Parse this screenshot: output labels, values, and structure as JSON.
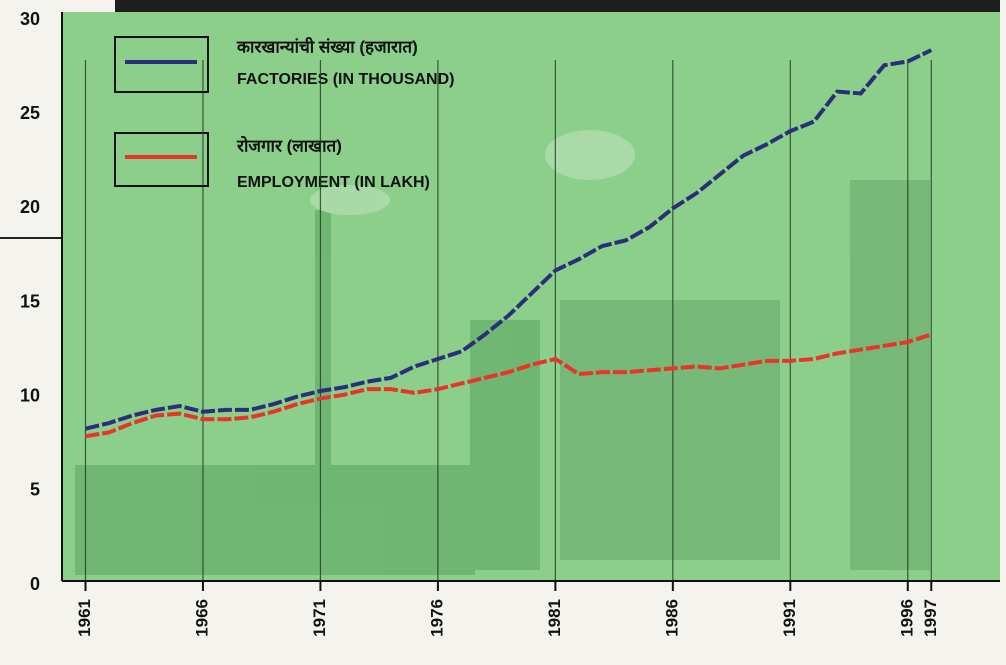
{
  "chart_data": {
    "type": "line",
    "x": [
      1961,
      1962,
      1963,
      1964,
      1965,
      1966,
      1967,
      1968,
      1969,
      1970,
      1971,
      1972,
      1973,
      1974,
      1975,
      1976,
      1977,
      1978,
      1979,
      1980,
      1981,
      1982,
      1983,
      1984,
      1985,
      1986,
      1987,
      1988,
      1989,
      1990,
      1991,
      1992,
      1993,
      1994,
      1995,
      1996,
      1997
    ],
    "series": [
      {
        "name": "FACTORIES (IN THOUSAND)",
        "label_marathi": "कारखान्यांची संख्या (हजारात)",
        "color": "#2a2f7a",
        "values": [
          8.3,
          8.6,
          9.0,
          9.3,
          9.5,
          9.2,
          9.3,
          9.3,
          9.6,
          10.0,
          10.3,
          10.5,
          10.8,
          11.0,
          11.6,
          12.0,
          12.4,
          13.3,
          14.3,
          15.5,
          16.7,
          17.3,
          18.0,
          18.3,
          19.0,
          20.0,
          20.8,
          21.8,
          22.8,
          23.4,
          24.1,
          24.6,
          26.2,
          26.1,
          27.6,
          27.8,
          28.4
        ]
      },
      {
        "name": "EMPLOYMENT (IN LAKH)",
        "label_marathi": "रोजगार (लाखात)",
        "color": "#e8352a",
        "values": [
          7.9,
          8.1,
          8.6,
          9.0,
          9.1,
          8.8,
          8.8,
          8.9,
          9.2,
          9.6,
          9.9,
          10.1,
          10.4,
          10.4,
          10.2,
          10.4,
          10.7,
          11.0,
          11.3,
          11.7,
          12.0,
          11.2,
          11.3,
          11.3,
          11.4,
          11.5,
          11.6,
          11.5,
          11.7,
          11.9,
          11.9,
          12.0,
          12.3,
          12.5,
          12.7,
          12.9,
          13.3
        ]
      }
    ],
    "xlim": [
      1960,
      1999.5
    ],
    "xticks": [
      1961,
      1966,
      1971,
      1976,
      1981,
      1986,
      1991,
      1996,
      1997
    ],
    "ylim": [
      0,
      30
    ],
    "yticks": [
      0,
      5,
      10,
      15,
      20,
      25,
      30
    ],
    "grid": "x"
  }
}
